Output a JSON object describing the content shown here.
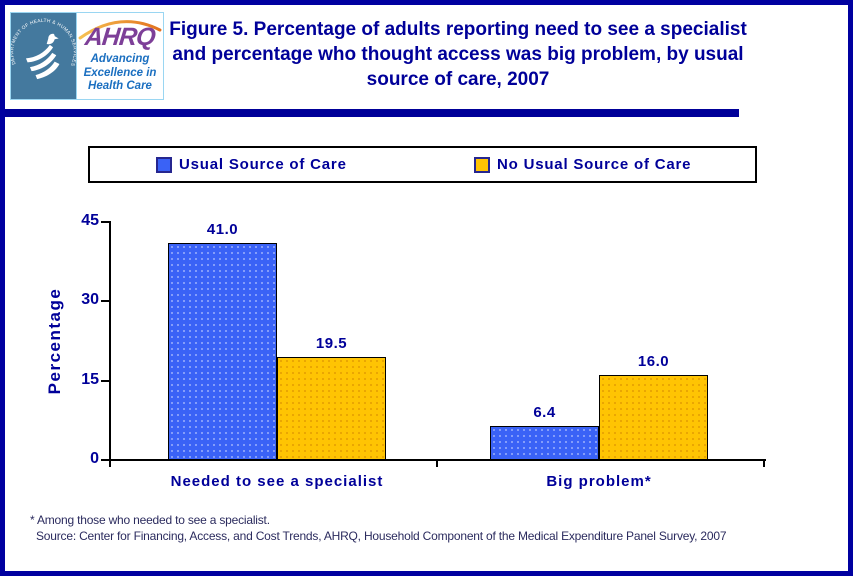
{
  "header": {
    "title": "Figure 5. Percentage of adults reporting need to see a specialist and percentage who thought access was big problem, by usual source of care, 2007"
  },
  "logo": {
    "seal_text": "DEPARTMENT OF HEALTH & HUMAN SERVICES • USA",
    "ahrq": "AHRQ",
    "tagline": "Advancing Excellence in Health Care"
  },
  "chart_data": {
    "type": "bar",
    "title": "Figure 5. Percentage of adults reporting need to see a specialist and percentage who thought access was big problem, by usual source of care, 2007",
    "categories": [
      "Needed to see a specialist",
      "Big problem*"
    ],
    "series": [
      {
        "name": "Usual Source of Care",
        "color": "#3A62F6",
        "values": [
          41.0,
          6.4
        ],
        "value_labels": [
          "41.0",
          "6.4"
        ]
      },
      {
        "name": "No Usual Source of Care",
        "color": "#FFC403",
        "values": [
          19.5,
          16.0
        ],
        "value_labels": [
          "19.5",
          "16.0"
        ]
      }
    ],
    "xlabel": "",
    "ylabel": "Percentage",
    "ylim": [
      0,
      45
    ],
    "yticks": [
      0,
      15,
      30,
      45
    ],
    "grid": false,
    "legend_position": "top"
  },
  "footnotes": {
    "asterisk": "* Among those who needed to see a specialist.",
    "source": "Source: Center for Financing, Access, and Cost Trends, AHRQ, Household Component of the Medical Expenditure Panel Survey, 2007"
  },
  "colors": {
    "accent_navy": "#000099",
    "page_border_blue": "#0000A0",
    "bar_blue": "#3A62F6",
    "bar_yellow": "#FFC403",
    "hhs_blue": "#44799E",
    "ahrq_purple": "#7D3F98",
    "tagline_blue": "#1B6FC0"
  }
}
